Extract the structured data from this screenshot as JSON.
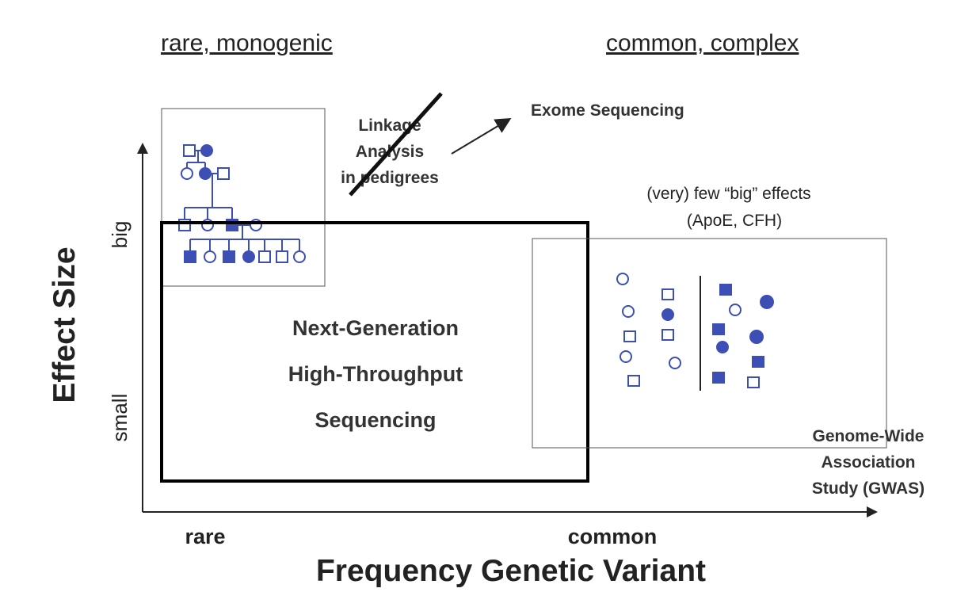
{
  "headers": {
    "left": "rare, monogenic",
    "right": "common, complex"
  },
  "linkage": {
    "line1": "Linkage",
    "line2": "Analysis",
    "line3": "in pedigrees"
  },
  "exome": "Exome Sequencing",
  "few_effects": {
    "line1": "(very) few “big” effects",
    "line2": "(ApoE, CFH)"
  },
  "ngs": {
    "line1": "Next-Generation",
    "line2": "High-Throughput",
    "line3": "Sequencing"
  },
  "gwas": {
    "line1": "Genome-Wide",
    "line2": "Association",
    "line3": "Study (GWAS)"
  },
  "axes": {
    "y_title": "Effect Size",
    "y_high": "big",
    "y_low": "small",
    "x_title": "Frequency Genetic Variant",
    "x_low": "rare",
    "x_high": "common"
  },
  "colors": {
    "symbol_blue": "#3d4fb5",
    "frame": "#000000"
  }
}
